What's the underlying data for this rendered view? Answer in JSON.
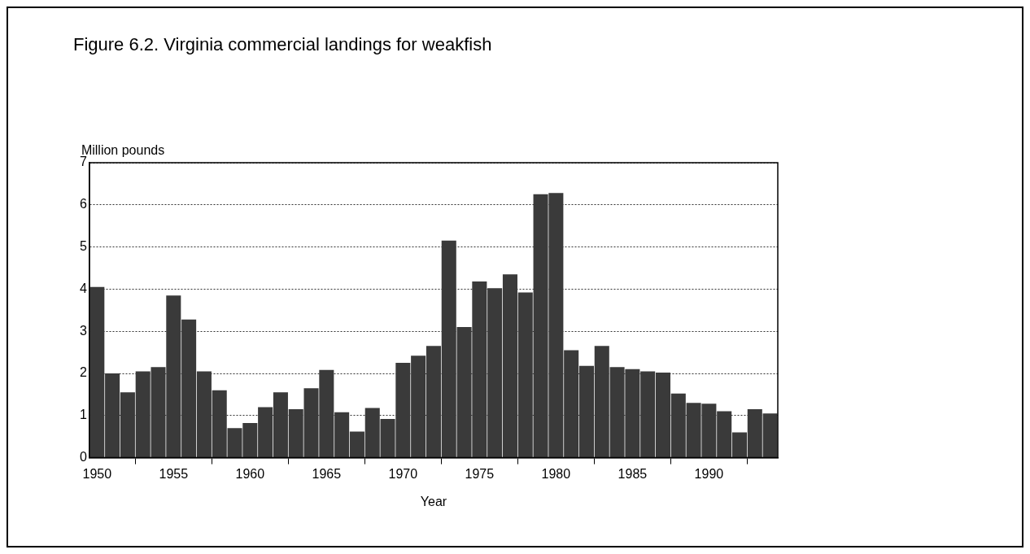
{
  "chart_data": {
    "type": "bar",
    "title": "Figure 6.2. Virginia commercial landings for weakfish",
    "xlabel": "Year",
    "ylabel": "Million pounds",
    "x": [
      1950,
      1951,
      1952,
      1953,
      1954,
      1955,
      1956,
      1957,
      1958,
      1959,
      1960,
      1961,
      1962,
      1963,
      1964,
      1965,
      1966,
      1967,
      1968,
      1969,
      1970,
      1971,
      1972,
      1973,
      1974,
      1975,
      1976,
      1977,
      1978,
      1979,
      1980,
      1981,
      1982,
      1983,
      1984,
      1985,
      1986,
      1987,
      1988,
      1989,
      1990,
      1991,
      1992,
      1993,
      1994
    ],
    "values": [
      4.05,
      2.0,
      1.55,
      2.05,
      2.15,
      3.85,
      3.28,
      2.05,
      1.6,
      0.7,
      0.82,
      1.2,
      1.55,
      1.15,
      1.65,
      2.08,
      1.08,
      0.62,
      1.18,
      0.92,
      2.25,
      2.42,
      2.65,
      5.15,
      3.1,
      4.18,
      4.02,
      4.35,
      3.92,
      6.25,
      6.28,
      2.55,
      2.18,
      2.65,
      2.15,
      2.1,
      2.05,
      2.02,
      1.52,
      1.3,
      1.28,
      1.1,
      0.6,
      1.15,
      1.05
    ],
    "color": "#3a3a3a",
    "xlim": [
      1949.5,
      1994.5
    ],
    "xticks": [
      1950,
      1955,
      1960,
      1965,
      1970,
      1975,
      1980,
      1985,
      1990
    ],
    "ylim": [
      0,
      7
    ],
    "yticks": [
      0,
      1,
      2,
      3,
      4,
      5,
      6,
      7
    ],
    "grid": "y"
  }
}
